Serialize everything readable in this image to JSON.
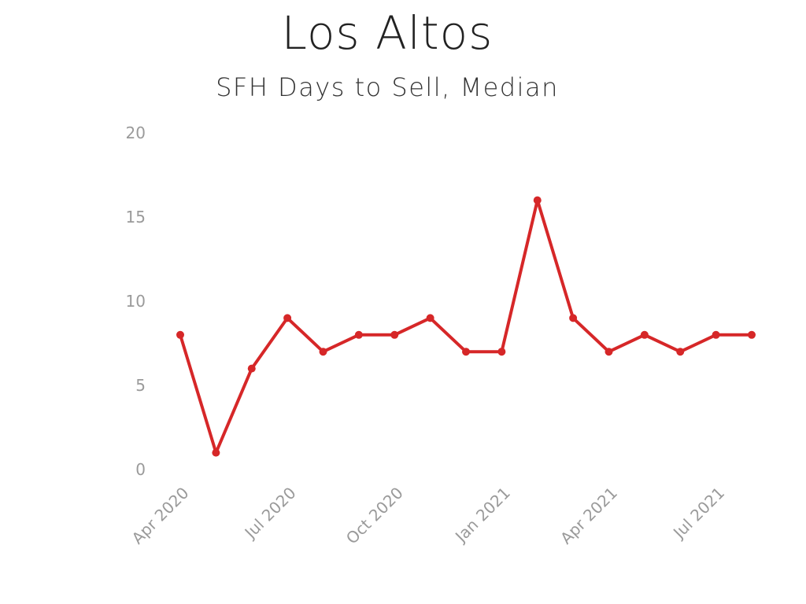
{
  "chart_data": {
    "type": "line",
    "title": "Los Altos",
    "subtitle": "SFH Days to Sell, Median",
    "xlabel": "",
    "ylabel": "",
    "ylim": [
      0,
      20
    ],
    "yticks": [
      0,
      5,
      10,
      15,
      20
    ],
    "grid": false,
    "x": [
      "2020-04",
      "2020-05",
      "2020-06",
      "2020-07",
      "2020-08",
      "2020-09",
      "2020-10",
      "2020-11",
      "2020-12",
      "2021-01",
      "2021-02",
      "2021-03",
      "2021-04",
      "2021-05",
      "2021-06",
      "2021-07",
      "2021-08"
    ],
    "xticks": [
      {
        "x": "2020-04",
        "label": "Apr 2020"
      },
      {
        "x": "2020-07",
        "label": "Jul 2020"
      },
      {
        "x": "2020-10",
        "label": "Oct 2020"
      },
      {
        "x": "2021-01",
        "label": "Jan 2021"
      },
      {
        "x": "2021-04",
        "label": "Apr 2021"
      },
      {
        "x": "2021-07",
        "label": "Jul 2021"
      }
    ],
    "series": [
      {
        "values": [
          8,
          1,
          6,
          9,
          7,
          8,
          8,
          9,
          7,
          7,
          16,
          9,
          7,
          8,
          7,
          8,
          8
        ],
        "color": "#d62728"
      }
    ]
  }
}
